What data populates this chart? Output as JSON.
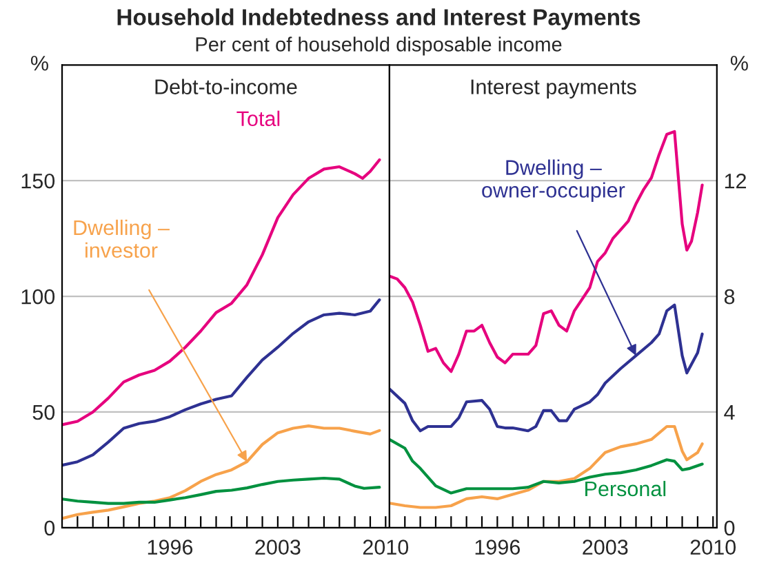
{
  "chart_data": [
    {
      "type": "line",
      "title": "Household Indebtedness and Interest Payments",
      "subtitle": "Per cent of household disposable income",
      "annotations": [
        "Debt-to-income"
      ],
      "ylabel": "%",
      "grid": "y",
      "xlim": [
        1989,
        2010.25
      ],
      "ylim": [
        0,
        200
      ],
      "yticks": [
        0,
        50,
        100,
        150
      ],
      "xticks": [
        {
          "value": 1990,
          "label": null
        },
        {
          "value": 1991,
          "label": null
        },
        {
          "value": 1992,
          "label": null
        },
        {
          "value": 1993,
          "label": null
        },
        {
          "value": 1994,
          "label": null
        },
        {
          "value": 1995,
          "label": null
        },
        1996,
        {
          "value": 1997,
          "label": null
        },
        {
          "value": 1998,
          "label": null
        },
        {
          "value": 1999,
          "label": null
        },
        {
          "value": 2000,
          "label": null
        },
        {
          "value": 2001,
          "label": null
        },
        {
          "value": 2002,
          "label": null
        },
        2003,
        {
          "value": 2004,
          "label": null
        },
        {
          "value": 2005,
          "label": null
        },
        {
          "value": 2006,
          "label": null
        },
        {
          "value": 2007,
          "label": null
        },
        {
          "value": 2008,
          "label": null
        },
        {
          "value": 2009,
          "label": null
        },
        2010
      ],
      "series": [
        {
          "name": "Total",
          "color": "#e6007e",
          "x": [
            1989,
            1990,
            1991,
            1992,
            1993,
            1994,
            1995,
            1996,
            1997,
            1998,
            1999,
            2000,
            2001,
            2002,
            2003,
            2004,
            2005,
            2006,
            2007,
            2008,
            2008.5,
            2009,
            2009.6
          ],
          "values": [
            44.5,
            46,
            50,
            56,
            63,
            66,
            68,
            72,
            78,
            85,
            93,
            97,
            105,
            118,
            134,
            144,
            151,
            155,
            156,
            153,
            151,
            154,
            159
          ]
        },
        {
          "color": "#2e3192",
          "x": [
            1989,
            1990,
            1991,
            1992,
            1993,
            1994,
            1995,
            1996,
            1997,
            1998,
            1999,
            2000,
            2001,
            2002,
            2003,
            2004,
            2005,
            2006,
            2007,
            2008,
            2009,
            2009.6
          ],
          "values": [
            27,
            28.5,
            31.5,
            37,
            43,
            45,
            46,
            48,
            51,
            53.5,
            55.5,
            57,
            65,
            72.5,
            78,
            84,
            89,
            92,
            92.7,
            92,
            93.6,
            98.5
          ]
        },
        {
          "name": "Dwelling – investor",
          "color": "#f7a24b",
          "x": [
            1989,
            1990,
            1991,
            1992,
            1993,
            1994,
            1995,
            1996,
            1997,
            1998,
            1999,
            2000,
            2001,
            2002,
            2003,
            2004,
            2005,
            2006,
            2007,
            2008,
            2009,
            2009.6
          ],
          "values": [
            4,
            5.7,
            6.7,
            7.6,
            9,
            10.5,
            11.5,
            13,
            16,
            20,
            23,
            25,
            28.5,
            36,
            41,
            43,
            44,
            43,
            43,
            41.7,
            40.5,
            42
          ]
        },
        {
          "color": "#00913f",
          "x": [
            1989,
            1990,
            1991,
            1992,
            1993,
            1994,
            1995,
            1996,
            1997,
            1998,
            1999,
            2000,
            2001,
            2002,
            2003,
            2004,
            2005,
            2006,
            2007,
            2008,
            2008.6,
            2009.6
          ],
          "values": [
            12.4,
            11.5,
            11,
            10.5,
            10.5,
            11,
            11,
            12,
            13,
            14.3,
            15.7,
            16.2,
            17.2,
            18.7,
            20,
            20.6,
            21,
            21.4,
            21,
            18,
            17,
            17.5
          ]
        }
      ]
    },
    {
      "type": "line",
      "annotations": [
        "Interest payments"
      ],
      "ylabel": "%",
      "grid": "y",
      "xlim": [
        1989,
        2010.25
      ],
      "ylim": [
        0,
        16
      ],
      "yticks": [
        0,
        4,
        8,
        12
      ],
      "xticks": [
        {
          "value": 1990,
          "label": null
        },
        {
          "value": 1991,
          "label": null
        },
        {
          "value": 1992,
          "label": null
        },
        {
          "value": 1993,
          "label": null
        },
        {
          "value": 1994,
          "label": null
        },
        {
          "value": 1995,
          "label": null
        },
        1996,
        {
          "value": 1997,
          "label": null
        },
        {
          "value": 1998,
          "label": null
        },
        {
          "value": 1999,
          "label": null
        },
        {
          "value": 2000,
          "label": null
        },
        {
          "value": 2001,
          "label": null
        },
        {
          "value": 2002,
          "label": null
        },
        2003,
        {
          "value": 2004,
          "label": null
        },
        {
          "value": 2005,
          "label": null
        },
        {
          "value": 2006,
          "label": null
        },
        {
          "value": 2007,
          "label": null
        },
        {
          "value": 2008,
          "label": null
        },
        {
          "value": 2009,
          "label": null
        },
        2010
      ],
      "series": [
        {
          "color": "#e6007e",
          "x": [
            1989,
            1989.5,
            1990,
            1990.5,
            1991,
            1991.5,
            1992,
            1992.5,
            1993,
            1993.5,
            1994,
            1994.5,
            1995,
            1995.5,
            1996,
            1996.5,
            1997,
            1997.5,
            1998,
            1998.5,
            1999,
            1999.5,
            2000,
            2000.5,
            2001,
            2001.5,
            2002,
            2002.5,
            2003,
            2003.5,
            2004,
            2004.5,
            2005,
            2005.5,
            2006,
            2006.5,
            2007,
            2007.5,
            2008,
            2008.3,
            2008.6,
            2009,
            2009.3
          ],
          "values": [
            8.7,
            8.6,
            8.3,
            7.8,
            7.0,
            6.1,
            6.2,
            5.7,
            5.4,
            6.0,
            6.8,
            6.8,
            7.0,
            6.4,
            5.9,
            5.7,
            6.0,
            6.0,
            6.0,
            6.3,
            7.4,
            7.5,
            7.0,
            6.8,
            7.5,
            7.9,
            8.3,
            9.2,
            9.5,
            10.0,
            10.3,
            10.6,
            11.2,
            11.7,
            12.1,
            12.9,
            13.6,
            13.7,
            10.5,
            9.6,
            9.9,
            10.9,
            11.85
          ]
        },
        {
          "name": "Dwelling – owner-occupier",
          "color": "#2e3192",
          "x": [
            1989,
            1990,
            1990.5,
            1991,
            1991.5,
            1992,
            1993,
            1993.5,
            1994,
            1995,
            1995.5,
            1996,
            1996.5,
            1997,
            1998,
            1998.5,
            1999,
            1999.5,
            2000,
            2000.5,
            2001,
            2002,
            2002.5,
            2003,
            2004,
            2005,
            2006,
            2006.5,
            2007,
            2007.5,
            2008,
            2008.3,
            2009,
            2009.3
          ],
          "values": [
            4.8,
            4.3,
            3.7,
            3.35,
            3.5,
            3.5,
            3.5,
            3.8,
            4.35,
            4.4,
            4.1,
            3.5,
            3.45,
            3.45,
            3.35,
            3.5,
            4.05,
            4.05,
            3.7,
            3.7,
            4.1,
            4.35,
            4.6,
            5.0,
            5.5,
            5.95,
            6.4,
            6.7,
            7.5,
            7.7,
            5.95,
            5.35,
            6.05,
            6.7
          ]
        },
        {
          "color": "#f7a24b",
          "x": [
            1989,
            1990,
            1991,
            1992,
            1993,
            1994,
            1995,
            1996,
            1997,
            1998,
            1999,
            2000,
            2001,
            2002,
            2003,
            2004,
            2005,
            2006,
            2007,
            2007.5,
            2008,
            2008.3,
            2009,
            2009.3
          ],
          "values": [
            0.85,
            0.76,
            0.7,
            0.7,
            0.76,
            1.0,
            1.07,
            1.0,
            1.15,
            1.3,
            1.6,
            1.6,
            1.7,
            2.05,
            2.6,
            2.8,
            2.9,
            3.05,
            3.5,
            3.5,
            2.65,
            2.35,
            2.6,
            2.9
          ]
        },
        {
          "name": "Personal",
          "color": "#00913f",
          "x": [
            1989,
            1990,
            1990.5,
            1991,
            1992,
            1993,
            1994,
            1995,
            1996,
            1997,
            1998,
            1999,
            2000,
            2001,
            2002,
            2003,
            2004,
            2005,
            2006,
            2007,
            2007.5,
            2008,
            2008.5,
            2009.3
          ],
          "values": [
            3.05,
            2.75,
            2.3,
            2.05,
            1.45,
            1.2,
            1.35,
            1.35,
            1.35,
            1.35,
            1.4,
            1.6,
            1.55,
            1.6,
            1.75,
            1.85,
            1.9,
            2.0,
            2.15,
            2.35,
            2.3,
            2.0,
            2.05,
            2.2
          ]
        }
      ]
    }
  ]
}
